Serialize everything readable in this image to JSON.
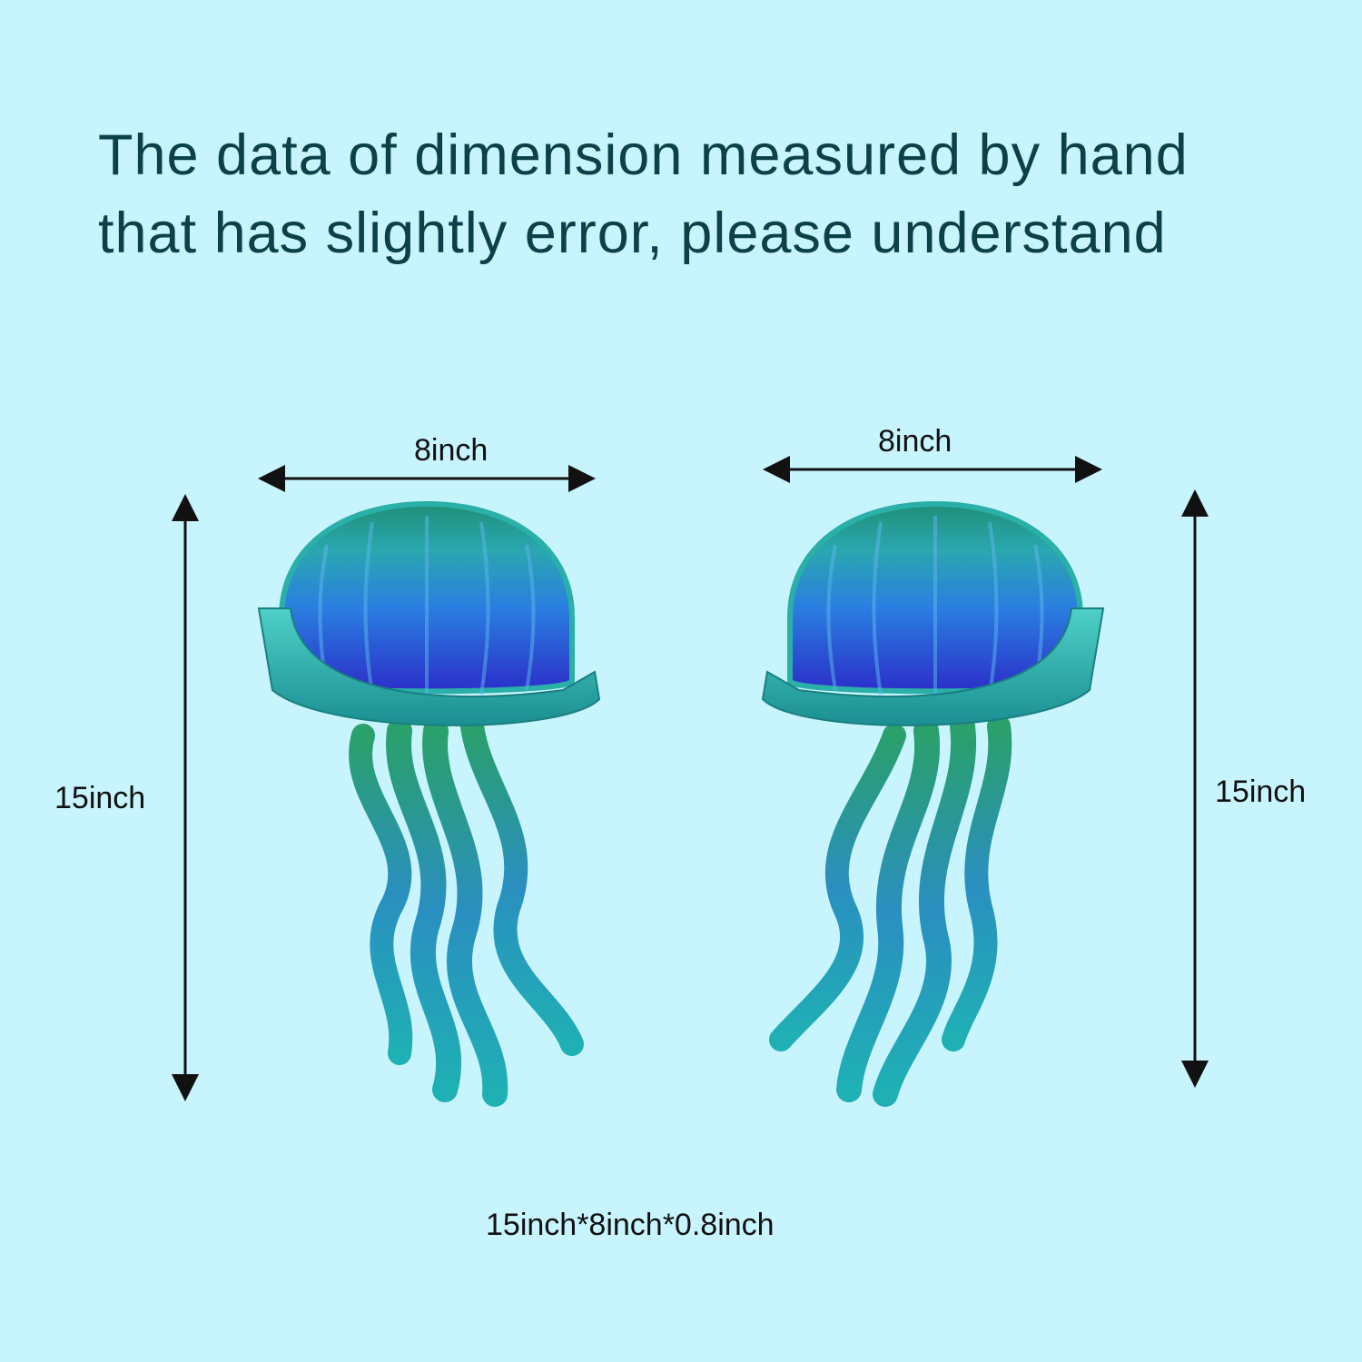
{
  "headline": {
    "line1": "The data of dimension measured by hand",
    "line2": "that has slightly error, please understand"
  },
  "left_item": {
    "width_label": "8inch",
    "height_label": "15inch"
  },
  "right_item": {
    "width_label": "8inch",
    "height_label": "15inch"
  },
  "overall_dimensions": "15inch*8inch*0.8inch",
  "colors": {
    "background": "#c8f4fd",
    "headline": "#0d4148",
    "bell_top": "#1f8f77",
    "bell_mid": "#2a7fe0",
    "bell_bottom": "#2b2fc9",
    "rim": "#2bb3b0",
    "tentacle_top": "#2aa06a",
    "tentacle_bottom": "#1fb0b4"
  },
  "icons": [
    "jellyfish-left",
    "jellyfish-right",
    "arrow-double-horizontal",
    "arrow-double-vertical"
  ]
}
